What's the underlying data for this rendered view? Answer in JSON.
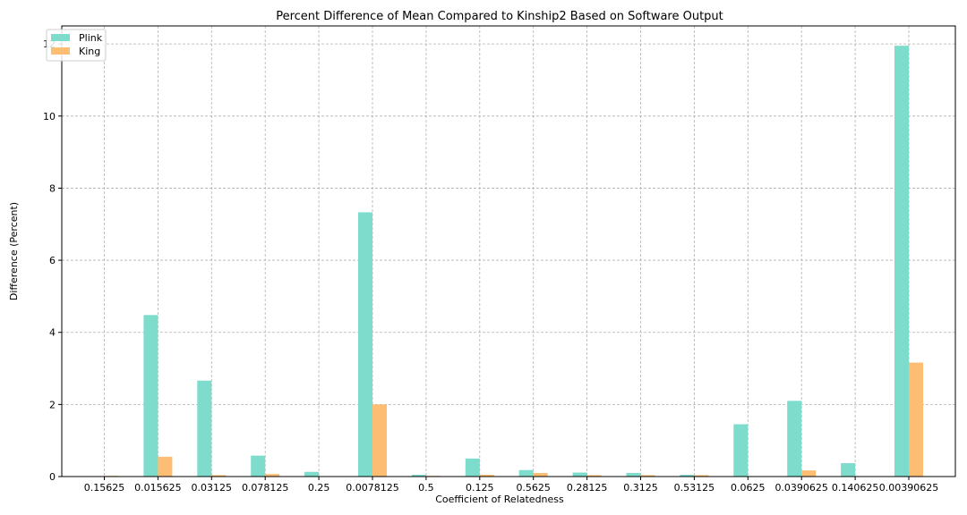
{
  "chart_data": {
    "type": "bar",
    "title": "Percent Difference of Mean Compared to Kinship2 Based on Software Output",
    "xlabel": "Coefficient of Relatedness",
    "ylabel": "Difference (Percent)",
    "categories": [
      "0.15625",
      "0.015625",
      "0.03125",
      "0.078125",
      "0.25",
      "0.0078125",
      "0.5",
      "0.125",
      "0.5625",
      "0.28125",
      "0.3125",
      "0.53125",
      "0.0625",
      "0.0390625",
      "0.140625",
      "0.00390625"
    ],
    "series": [
      {
        "name": "Plink",
        "color": "#7ddccc",
        "values": [
          0.0,
          4.48,
          2.66,
          0.58,
          0.13,
          7.33,
          0.05,
          0.5,
          0.18,
          0.11,
          0.1,
          0.05,
          1.45,
          2.1,
          0.37,
          11.95
        ]
      },
      {
        "name": "King",
        "color": "#fdbe74",
        "values": [
          0.02,
          0.55,
          0.04,
          0.07,
          0.01,
          2.0,
          0.02,
          0.05,
          0.1,
          0.04,
          0.04,
          0.04,
          0.0,
          0.17,
          0.0,
          3.16
        ]
      }
    ],
    "ylim": [
      0,
      12.5
    ],
    "yticks": [
      0,
      2,
      4,
      6,
      8,
      10,
      12
    ],
    "grid": true,
    "legend_position": "top-left"
  }
}
